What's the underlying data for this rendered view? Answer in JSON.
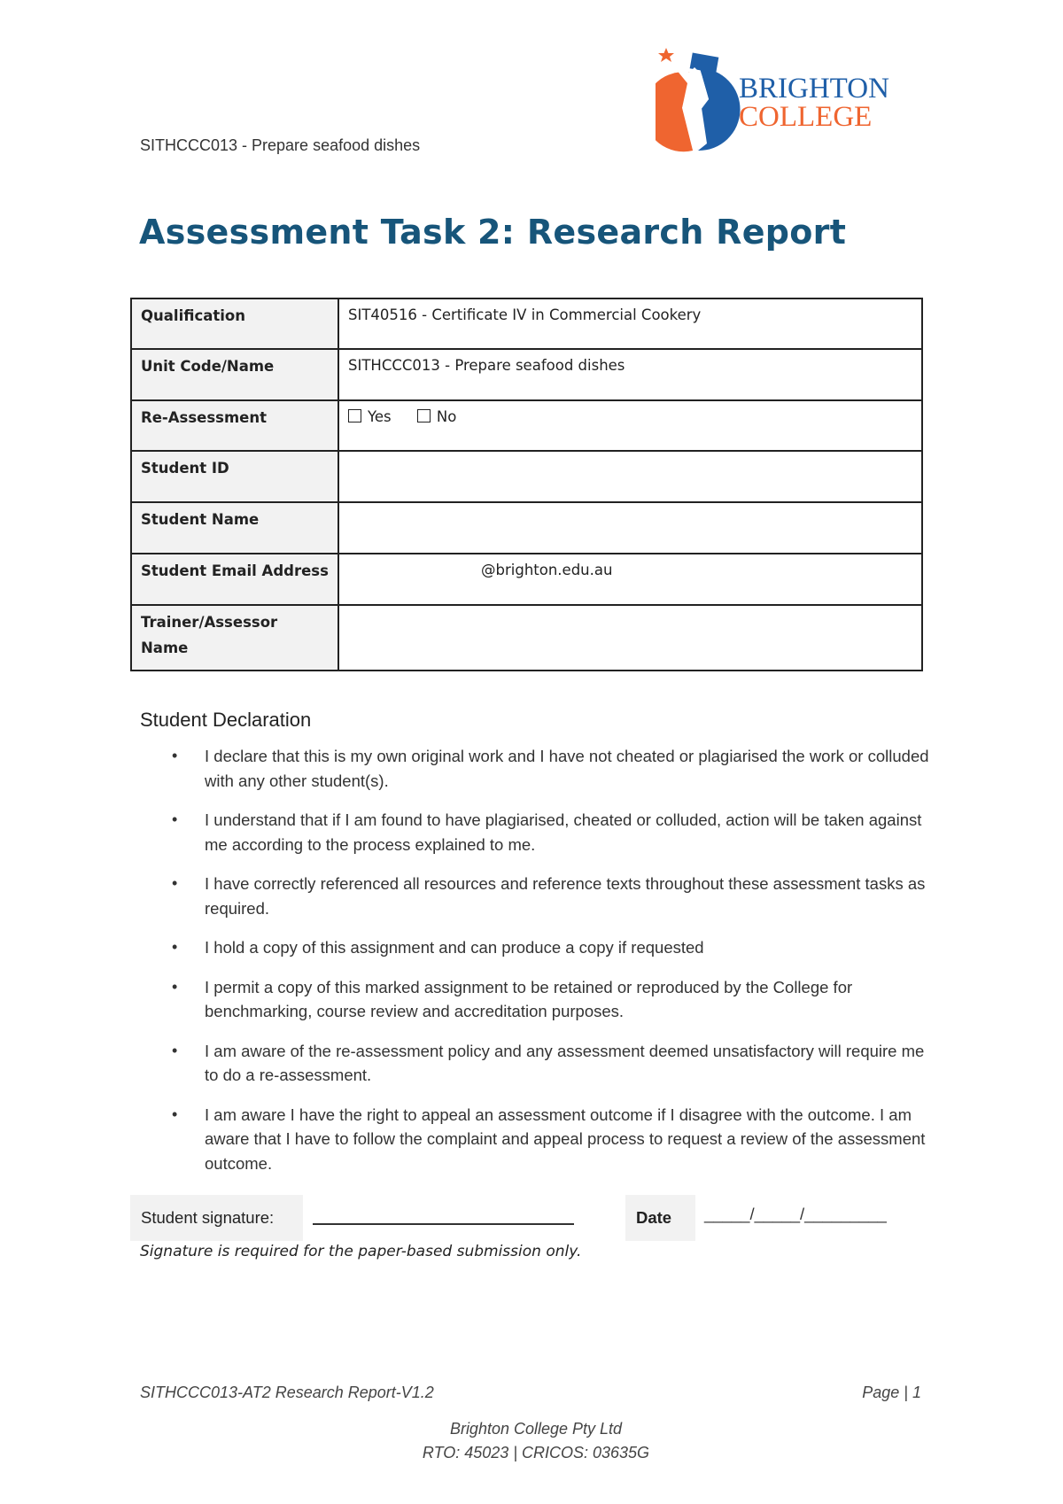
{
  "header": {
    "unit_text": "SITHCCC013 - Prepare seafood dishes",
    "logo": {
      "line1": "BRIGHTON",
      "line2": "COLLEGE",
      "colors": {
        "blue": "#1f5fa8",
        "orange": "#ef6530"
      }
    }
  },
  "title": "Assessment Task 2: Research Report",
  "title_color": "#17557a",
  "info_table": {
    "rows": [
      {
        "label": "Qualification",
        "value": "SIT40516 - Certificate IV in Commercial Cookery"
      },
      {
        "label": "Unit Code/Name",
        "value": "SITHCCC013 - Prepare seafood dishes"
      },
      {
        "label": "Re-Assessment",
        "options": [
          "Yes",
          "No"
        ]
      },
      {
        "label": "Student ID",
        "value": ""
      },
      {
        "label": "Student Name",
        "value": ""
      },
      {
        "label": "Student Email Address",
        "value": "@brighton.edu.au"
      },
      {
        "label": "Trainer/Assessor Name",
        "value": ""
      }
    ]
  },
  "declaration": {
    "heading": "Student Declaration",
    "items": [
      "I declare that this is my own original work and I have not cheated or plagiarised the work or colluded with any other student(s).",
      "I understand that if I am found to have plagiarised, cheated or colluded, action will be taken against me according to the process explained to me.",
      "I have correctly referenced all resources and reference texts throughout these assessment tasks as required.",
      "I hold a copy of this assignment and can produce a copy if requested",
      "I permit a copy of this marked assignment to be retained or reproduced by the College for benchmarking, course review and accreditation purposes.",
      "I am aware of the re-assessment policy and any assessment deemed unsatisfactory will require me to do a re-assessment.",
      "I am aware I have the right to appeal an assessment outcome if I disagree with the outcome. I am aware that I have to follow the complaint and appeal process to request a review of the assessment outcome."
    ]
  },
  "signature": {
    "label": "Student signature:",
    "date_label": "Date",
    "date_placeholder": "_____/_____/_________",
    "note": "Signature is required for the paper-based submission only."
  },
  "footer": {
    "doc_id": "SITHCCC013-AT2 Research Report-V1.2",
    "page": "Page | 1",
    "company": "Brighton College Pty Ltd",
    "registration": "RTO: 45023 | CRICOS: 03635G"
  }
}
